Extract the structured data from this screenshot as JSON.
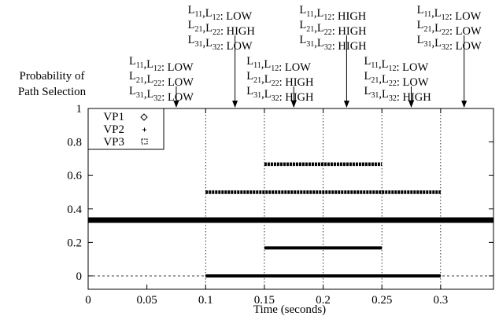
{
  "chart_data": {
    "type": "scatter",
    "title": "",
    "xlabel": "Time (seconds)",
    "ylabel": "Probability of Path Selection",
    "ylabel_lines": [
      "Probability of",
      "Path Selection"
    ],
    "xlim": [
      0,
      0.345
    ],
    "ylim": [
      -0.08,
      1.0
    ],
    "x_ticks": [
      0,
      0.05,
      0.1,
      0.15,
      0.2,
      0.25,
      0.3
    ],
    "x_tick_labels": [
      "0",
      "0.05",
      "0.1",
      "0.15",
      "0.2",
      "0.25",
      "0.3"
    ],
    "y_ticks": [
      0,
      0.2,
      0.4,
      0.6,
      0.8,
      1
    ],
    "y_tick_labels": [
      "0",
      "0.2",
      "0.4",
      "0.6",
      "0.8",
      "1"
    ],
    "phase_boundaries": [
      0.1,
      0.15,
      0.2,
      0.25,
      0.3
    ],
    "legend": {
      "placement": "top-left",
      "entries": [
        "VP1",
        "VP2",
        "VP3"
      ]
    },
    "series": [
      {
        "name": "VP1",
        "marker": "diamond",
        "segments": [
          {
            "x_start": 0.15,
            "x_end": 0.25,
            "y": 0.667
          },
          {
            "x_start": 0.1,
            "x_end": 0.3,
            "y": 0.5
          },
          {
            "x_start": 0.0,
            "x_end": 0.345,
            "y": 0.333
          }
        ]
      },
      {
        "name": "VP2",
        "marker": "dot",
        "segments": [
          {
            "x_start": 0.0,
            "x_end": 0.345,
            "y": 0.333
          },
          {
            "x_start": 0.1,
            "x_end": 0.3,
            "y": 0.0
          }
        ]
      },
      {
        "name": "VP3",
        "marker": "square",
        "segments": [
          {
            "x_start": 0.0,
            "x_end": 0.345,
            "y": 0.333
          },
          {
            "x_start": 0.15,
            "x_end": 0.25,
            "y": 0.167
          },
          {
            "x_start": 0.1,
            "x_end": 0.3,
            "y": 0.0
          }
        ]
      }
    ],
    "annotations": [
      {
        "x": 0.075,
        "row": "lower",
        "rows": [
          {
            "a": "11",
            "b": "12",
            "v": "LOW"
          },
          {
            "a": "21",
            "b": "22",
            "v": "LOW"
          },
          {
            "a": "31",
            "b": "32",
            "v": "LOW"
          }
        ]
      },
      {
        "x": 0.125,
        "row": "upper",
        "rows": [
          {
            "a": "11",
            "b": "12",
            "v": "LOW"
          },
          {
            "a": "21",
            "b": "22",
            "v": "HIGH"
          },
          {
            "a": "31",
            "b": "32",
            "v": "LOW"
          }
        ]
      },
      {
        "x": 0.175,
        "row": "lower",
        "rows": [
          {
            "a": "11",
            "b": "12",
            "v": "LOW"
          },
          {
            "a": "21",
            "b": "22",
            "v": "HIGH"
          },
          {
            "a": "31",
            "b": "32",
            "v": "HIGH"
          }
        ]
      },
      {
        "x": 0.22,
        "row": "upper",
        "rows": [
          {
            "a": "11",
            "b": "12",
            "v": "HIGH"
          },
          {
            "a": "21",
            "b": "22",
            "v": "HIGH"
          },
          {
            "a": "31",
            "b": "32",
            "v": "HIGH"
          }
        ]
      },
      {
        "x": 0.275,
        "row": "lower",
        "rows": [
          {
            "a": "11",
            "b": "12",
            "v": "LOW"
          },
          {
            "a": "21",
            "b": "22",
            "v": "LOW"
          },
          {
            "a": "31",
            "b": "32",
            "v": "HIGH"
          }
        ]
      },
      {
        "x": 0.32,
        "row": "upper",
        "rows": [
          {
            "a": "11",
            "b": "12",
            "v": "LOW"
          },
          {
            "a": "21",
            "b": "22",
            "v": "LOW"
          },
          {
            "a": "31",
            "b": "32",
            "v": "LOW"
          }
        ]
      }
    ]
  }
}
